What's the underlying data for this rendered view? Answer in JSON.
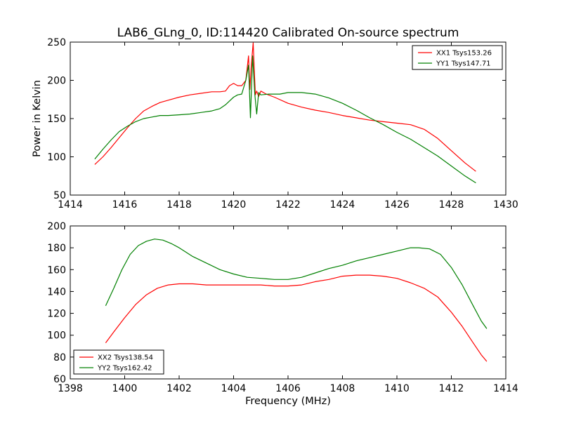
{
  "chart_data": [
    {
      "type": "line",
      "title": "LAB6_GLng_0, ID:114420 Calibrated On-source spectrum",
      "xlabel": "",
      "ylabel": "Power in Kelvin",
      "xlim": [
        1414,
        1430
      ],
      "ylim": [
        50,
        250
      ],
      "xticks": [
        "1414",
        "1416",
        "1418",
        "1420",
        "1422",
        "1424",
        "1426",
        "1428",
        "1430"
      ],
      "yticks": [
        "50",
        "100",
        "150",
        "200",
        "250"
      ],
      "grid": false,
      "legend": "top-right",
      "series": [
        {
          "name": "XX1 Tsys153.26",
          "color": "#ff0000",
          "x": [
            1414.9,
            1415.2,
            1415.5,
            1415.8,
            1416.1,
            1416.4,
            1416.7,
            1417.0,
            1417.3,
            1417.6,
            1418.0,
            1418.4,
            1418.8,
            1419.2,
            1419.5,
            1419.7,
            1419.85,
            1420.0,
            1420.15,
            1420.3,
            1420.45,
            1420.55,
            1420.6,
            1420.65,
            1420.72,
            1420.8,
            1420.85,
            1420.92,
            1421.0,
            1421.2,
            1421.5,
            1422.0,
            1422.5,
            1423.0,
            1423.5,
            1424.0,
            1424.5,
            1425.0,
            1425.5,
            1426.0,
            1426.5,
            1427.0,
            1427.5,
            1428.0,
            1428.5,
            1428.9
          ],
          "y": [
            90,
            100,
            112,
            125,
            138,
            150,
            160,
            166,
            171,
            174,
            178,
            181,
            183,
            185,
            185,
            186,
            193,
            196,
            193,
            193,
            200,
            232,
            188,
            220,
            249,
            181,
            186,
            179,
            186,
            182,
            178,
            170,
            165,
            161,
            158,
            154,
            151,
            148,
            146,
            144,
            142,
            136,
            124,
            108,
            92,
            81
          ]
        },
        {
          "name": "YY1 Tsys147.71",
          "color": "#008000",
          "x": [
            1414.9,
            1415.2,
            1415.5,
            1415.8,
            1416.1,
            1416.4,
            1416.7,
            1417.0,
            1417.3,
            1417.6,
            1418.0,
            1418.4,
            1418.8,
            1419.2,
            1419.5,
            1419.7,
            1419.85,
            1420.0,
            1420.15,
            1420.3,
            1420.45,
            1420.55,
            1420.62,
            1420.7,
            1420.78,
            1420.85,
            1420.92,
            1421.0,
            1421.3,
            1421.7,
            1422.0,
            1422.5,
            1423.0,
            1423.5,
            1424.0,
            1424.5,
            1425.0,
            1425.5,
            1426.0,
            1426.5,
            1427.0,
            1427.5,
            1428.0,
            1428.5,
            1428.9
          ],
          "y": [
            97,
            110,
            122,
            133,
            140,
            146,
            150,
            152,
            154,
            154,
            155,
            156,
            158,
            160,
            163,
            168,
            173,
            178,
            181,
            182,
            200,
            220,
            151,
            232,
            182,
            156,
            184,
            181,
            182,
            182,
            184,
            184,
            182,
            177,
            170,
            161,
            151,
            142,
            132,
            123,
            112,
            101,
            88,
            75,
            66
          ]
        }
      ]
    },
    {
      "type": "line",
      "title": "",
      "xlabel": "Frequency (MHz)",
      "ylabel": "",
      "xlim": [
        1398,
        1414
      ],
      "ylim": [
        60,
        200
      ],
      "xticks": [
        "1398",
        "1400",
        "1402",
        "1404",
        "1406",
        "1408",
        "1410",
        "1412",
        "1414"
      ],
      "yticks": [
        "60",
        "80",
        "100",
        "120",
        "140",
        "160",
        "180",
        "200"
      ],
      "grid": false,
      "legend": "bottom-left",
      "series": [
        {
          "name": "XX2 Tsys138.54",
          "color": "#ff0000",
          "x": [
            1399.3,
            1399.6,
            1400.0,
            1400.4,
            1400.8,
            1401.2,
            1401.6,
            1402.0,
            1402.5,
            1403.0,
            1403.5,
            1404.0,
            1404.5,
            1405.0,
            1405.5,
            1406.0,
            1406.5,
            1407.0,
            1407.5,
            1408.0,
            1408.5,
            1409.0,
            1409.5,
            1410.0,
            1410.5,
            1411.0,
            1411.5,
            1412.0,
            1412.4,
            1412.8,
            1413.1,
            1413.3
          ],
          "y": [
            93,
            103,
            116,
            128,
            137,
            143,
            146,
            147,
            147,
            146,
            146,
            146,
            146,
            146,
            145,
            145,
            146,
            149,
            151,
            154,
            155,
            155,
            154,
            152,
            148,
            143,
            135,
            121,
            108,
            93,
            82,
            76
          ]
        },
        {
          "name": "YY2 Tsys162.42",
          "color": "#008000",
          "x": [
            1399.3,
            1399.6,
            1399.9,
            1400.2,
            1400.5,
            1400.8,
            1401.1,
            1401.4,
            1401.7,
            1402.0,
            1402.5,
            1403.0,
            1403.5,
            1404.0,
            1404.5,
            1405.0,
            1405.5,
            1406.0,
            1406.5,
            1407.0,
            1407.5,
            1408.0,
            1408.5,
            1409.0,
            1409.5,
            1410.0,
            1410.5,
            1410.8,
            1411.2,
            1411.6,
            1412.0,
            1412.4,
            1412.8,
            1413.1,
            1413.3
          ],
          "y": [
            127,
            143,
            160,
            174,
            182,
            186,
            188,
            187,
            184,
            180,
            172,
            166,
            160,
            156,
            153,
            152,
            151,
            151,
            153,
            157,
            161,
            164,
            168,
            171,
            174,
            177,
            180,
            180,
            179,
            174,
            162,
            146,
            127,
            113,
            106
          ]
        }
      ]
    }
  ]
}
